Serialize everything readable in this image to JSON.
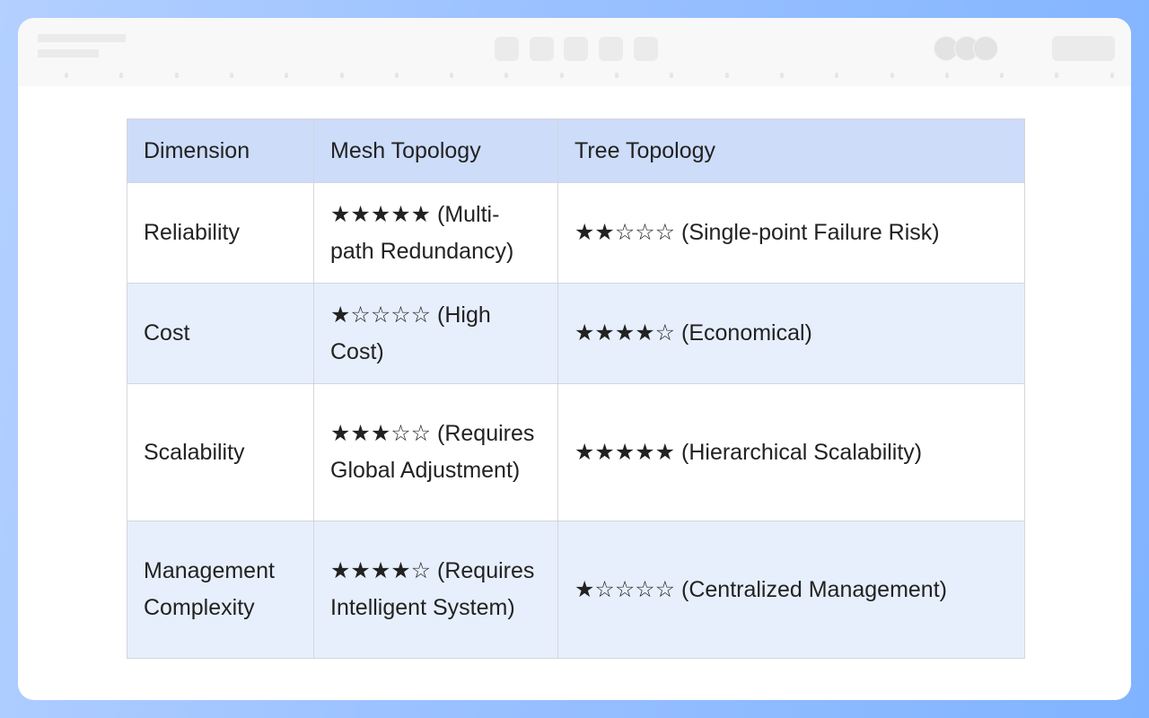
{
  "table": {
    "headers": [
      "Dimension",
      "Mesh Topology",
      "Tree Topology"
    ],
    "rows": [
      {
        "dimension": "Reliability",
        "mesh": "★★★★★ (Multi-path Redundancy)",
        "tree": "★★☆☆☆ (Single-point Failure Risk)",
        "mesh_rating": 5,
        "tree_rating": 2
      },
      {
        "dimension": "Cost",
        "mesh": "★☆☆☆☆ (High Cost)",
        "tree": "★★★★☆ (Economical)",
        "mesh_rating": 1,
        "tree_rating": 4
      },
      {
        "dimension": "Scalability",
        "mesh": "★★★☆☆ (Requires Global Adjustment)",
        "tree": "★★★★★ (Hierarchical Scalability)",
        "mesh_rating": 3,
        "tree_rating": 5
      },
      {
        "dimension": "Management Complexity",
        "mesh": "★★★★☆ (Requires Intelligent System)",
        "tree": "★☆☆☆☆ (Centralized Management)",
        "mesh_rating": 4,
        "tree_rating": 1
      }
    ]
  },
  "colors": {
    "header_bg": "#cddcf9",
    "alt_row_bg": "#e7effc",
    "frame": "#9cc2ff"
  }
}
